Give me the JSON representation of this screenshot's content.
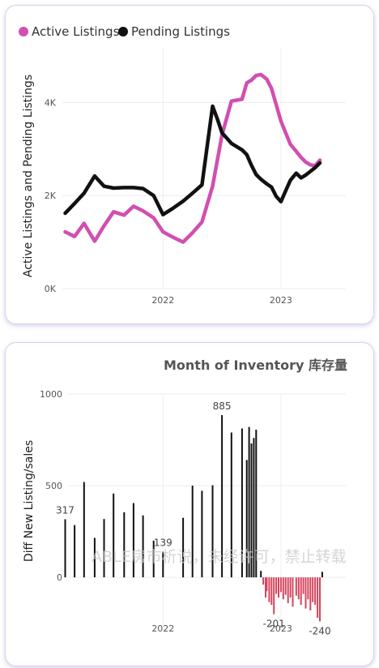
{
  "chart_data": [
    {
      "type": "line",
      "title": "",
      "xlabel": "",
      "ylabel": "Active Listings and Pending Listings",
      "legend_position": "top-left",
      "grid": true,
      "x_ticks": [
        {
          "label": "2022",
          "value": 2022.0
        },
        {
          "label": "2023",
          "value": 2023.0
        }
      ],
      "y_ticks": [
        {
          "label": "0K",
          "value": 0
        },
        {
          "label": "2K",
          "value": 2000
        },
        {
          "label": "4K",
          "value": 4000
        }
      ],
      "xlim": [
        2021.05,
        2023.55
      ],
      "ylim": [
        0,
        5000
      ],
      "series": [
        {
          "name": "Active Listings",
          "color": "#d14fb0",
          "x": [
            2021.17,
            2021.25,
            2021.33,
            2021.42,
            2021.5,
            2021.58,
            2021.67,
            2021.75,
            2021.83,
            2021.92,
            2022.0,
            2022.08,
            2022.17,
            2022.25,
            2022.33,
            2022.42,
            2022.5,
            2022.58,
            2022.67,
            2022.71,
            2022.75,
            2022.79,
            2022.83,
            2022.88,
            2022.92,
            2022.96,
            2023.0,
            2023.04,
            2023.08,
            2023.13,
            2023.17,
            2023.21,
            2023.25,
            2023.29,
            2023.33
          ],
          "y": [
            1220,
            1120,
            1400,
            1020,
            1350,
            1650,
            1580,
            1770,
            1670,
            1520,
            1220,
            1110,
            1000,
            1200,
            1430,
            2200,
            3300,
            4030,
            4070,
            4420,
            4480,
            4580,
            4600,
            4500,
            4300,
            3950,
            3600,
            3350,
            3100,
            2950,
            2820,
            2720,
            2660,
            2640,
            2760
          ]
        },
        {
          "name": "Pending Listings",
          "color": "#111111",
          "x": [
            2021.17,
            2021.25,
            2021.33,
            2021.42,
            2021.5,
            2021.58,
            2021.67,
            2021.75,
            2021.83,
            2021.92,
            2022.0,
            2022.08,
            2022.17,
            2022.25,
            2022.33,
            2022.42,
            2022.46,
            2022.5,
            2022.58,
            2022.67,
            2022.71,
            2022.75,
            2022.79,
            2022.83,
            2022.88,
            2022.92,
            2022.96,
            2023.0,
            2023.04,
            2023.08,
            2023.13,
            2023.17,
            2023.21,
            2023.25,
            2023.29,
            2023.33
          ],
          "y": [
            1620,
            1830,
            2050,
            2420,
            2200,
            2160,
            2170,
            2170,
            2150,
            2000,
            1590,
            1720,
            1880,
            2050,
            2230,
            3920,
            3650,
            3350,
            3120,
            2980,
            2880,
            2650,
            2450,
            2350,
            2250,
            2180,
            1980,
            1870,
            2100,
            2330,
            2480,
            2380,
            2440,
            2520,
            2600,
            2700
          ]
        }
      ]
    },
    {
      "type": "bar",
      "title": "Month of Inventory 库存量",
      "xlabel": "",
      "ylabel": "Diff New Listing/sales",
      "grid": true,
      "x_ticks": [
        {
          "label": "2022",
          "value": 2022.0
        },
        {
          "label": "2023",
          "value": 2023.0
        }
      ],
      "y_ticks": [
        {
          "label": "0",
          "value": 0
        },
        {
          "label": "500",
          "value": 500
        },
        {
          "label": "1000",
          "value": 1000
        }
      ],
      "xlim": [
        2021.05,
        2023.55
      ],
      "ylim": [
        -300,
        1000
      ],
      "positive_color": "#111111",
      "negative_color": "#d6455c",
      "x": [
        2021.17,
        2021.25,
        2021.33,
        2021.42,
        2021.5,
        2021.58,
        2021.67,
        2021.75,
        2021.83,
        2021.92,
        2022.0,
        2022.17,
        2022.25,
        2022.33,
        2022.42,
        2022.5,
        2022.58,
        2022.67,
        2022.71,
        2022.73,
        2022.75,
        2022.77,
        2022.79,
        2022.83,
        2022.85,
        2022.87,
        2022.88,
        2022.9,
        2022.92,
        2022.94,
        2022.96,
        2022.98,
        2023.0,
        2023.02,
        2023.04,
        2023.06,
        2023.08,
        2023.1,
        2023.13,
        2023.15,
        2023.17,
        2023.19,
        2023.21,
        2023.23,
        2023.25,
        2023.27,
        2023.29,
        2023.31,
        2023.33,
        2023.35
      ],
      "values": [
        317,
        285,
        520,
        215,
        318,
        457,
        355,
        405,
        338,
        200,
        139,
        325,
        500,
        472,
        502,
        885,
        790,
        812,
        640,
        820,
        730,
        760,
        805,
        35,
        -40,
        -110,
        -75,
        -135,
        -150,
        -201,
        -90,
        -110,
        -80,
        -120,
        -95,
        -140,
        -110,
        -160,
        -100,
        -120,
        -150,
        -90,
        -170,
        -120,
        -180,
        -135,
        -150,
        -220,
        -240,
        30
      ],
      "data_labels": [
        {
          "text": "317",
          "x": 2021.17,
          "value": 317
        },
        {
          "text": "139",
          "x": 2022.0,
          "value": 139
        },
        {
          "text": "885",
          "x": 2022.5,
          "value": 885
        },
        {
          "text": "-201",
          "x": 2022.94,
          "value": -201
        },
        {
          "text": "-240",
          "x": 2023.33,
          "value": -240
        }
      ]
    }
  ],
  "watermark": "ABLE房市析说，未经许可，禁止转载"
}
